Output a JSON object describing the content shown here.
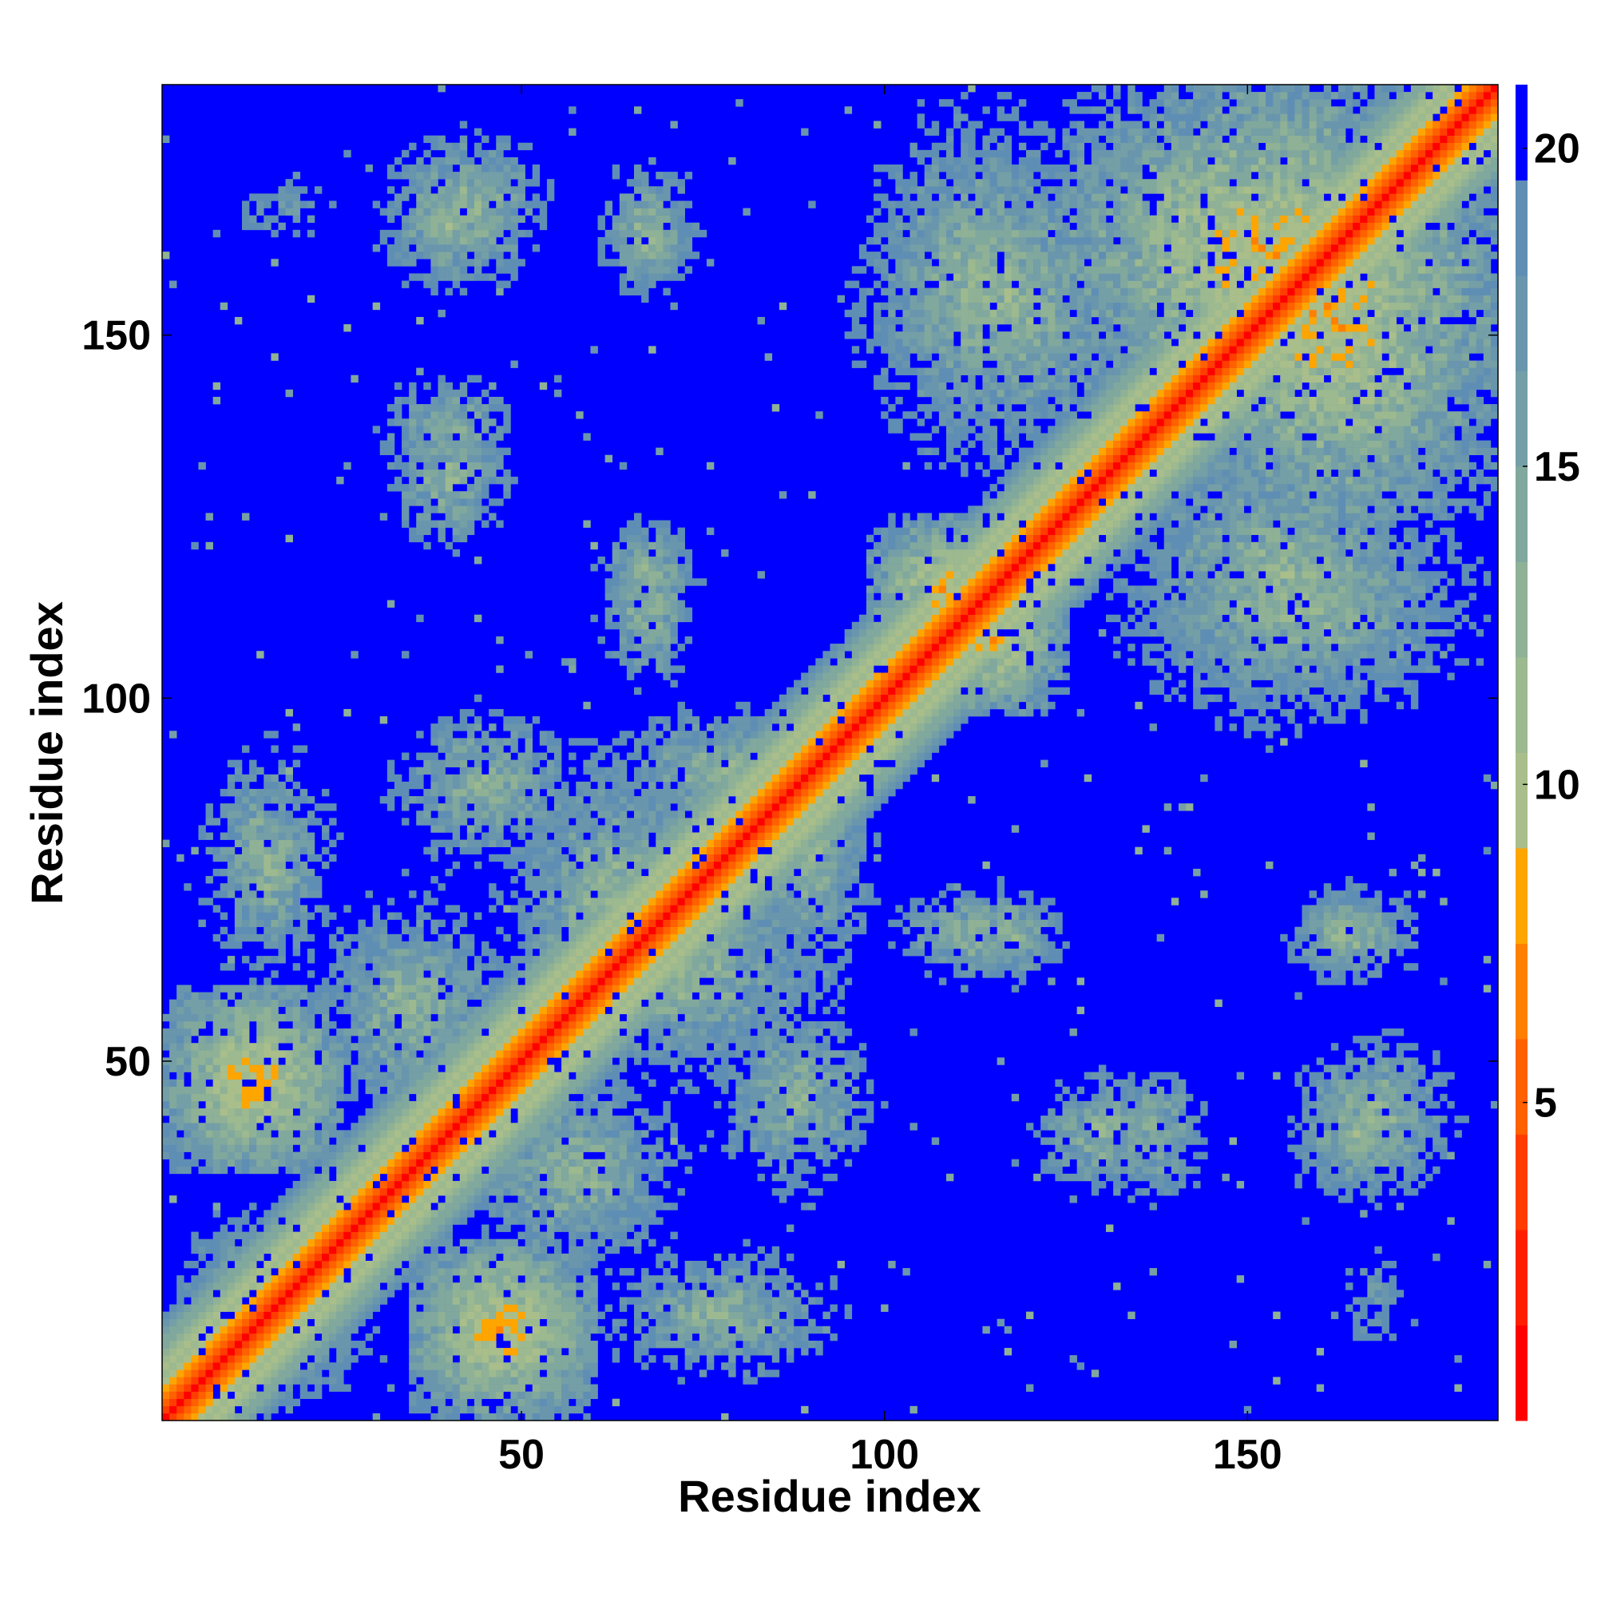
{
  "chart_data": {
    "type": "heatmap",
    "title": "",
    "xlabel": "Residue index",
    "ylabel": "Residue index",
    "n_residues": 184,
    "xlim": [
      1,
      184
    ],
    "ylim": [
      1,
      184
    ],
    "x_ticks": [
      50,
      100,
      150
    ],
    "y_ticks": [
      50,
      100,
      150
    ],
    "colorbar": {
      "ticks": [
        5,
        10,
        15,
        20
      ],
      "range": [
        0,
        21
      ],
      "levels": [
        {
          "max": 1.5,
          "color": "#ff0000"
        },
        {
          "max": 3,
          "color": "#ff1f00"
        },
        {
          "max": 4.5,
          "color": "#ff3d00"
        },
        {
          "max": 6,
          "color": "#ff6000"
        },
        {
          "max": 7.5,
          "color": "#ff8000"
        },
        {
          "max": 9,
          "color": "#ffa500"
        },
        {
          "max": 10.5,
          "color": "#a9be8a"
        },
        {
          "max": 12,
          "color": "#9cb98f"
        },
        {
          "max": 13.5,
          "color": "#8fb196"
        },
        {
          "max": 15,
          "color": "#81a89d"
        },
        {
          "max": 16.5,
          "color": "#749fa6"
        },
        {
          "max": 18,
          "color": "#6996ad"
        },
        {
          "max": 19.5,
          "color": "#5f8eb4"
        },
        {
          "max": 21,
          "color": "#0000ff"
        }
      ]
    },
    "background_color": "#0000ff",
    "diagonal_band_width": 6,
    "contact_regions": [
      {
        "x": [
          1,
          30
        ],
        "y": [
          1,
          30
        ],
        "level": "medium"
      },
      {
        "x": [
          35,
          60
        ],
        "y": [
          1,
          25
        ],
        "level": "high"
      },
      {
        "x": [
          60,
          95
        ],
        "y": [
          5,
          25
        ],
        "level": "medium"
      },
      {
        "x": [
          1,
          25
        ],
        "y": [
          35,
          60
        ],
        "level": "high"
      },
      {
        "x": [
          20,
          50
        ],
        "y": [
          40,
          75
        ],
        "level": "medium"
      },
      {
        "x": [
          50,
          95
        ],
        "y": [
          45,
          80
        ],
        "level": "medium"
      },
      {
        "x": [
          30,
          60
        ],
        "y": [
          75,
          100
        ],
        "level": "medium"
      },
      {
        "x": [
          60,
          95
        ],
        "y": [
          80,
          100
        ],
        "level": "medium"
      },
      {
        "x": [
          105,
          125
        ],
        "y": [
          98,
          118
        ],
        "level": "high"
      },
      {
        "x": [
          100,
          125
        ],
        "y": [
          60,
          75
        ],
        "level": "medium"
      },
      {
        "x": [
          120,
          140
        ],
        "y": [
          30,
          50
        ],
        "level": "medium"
      },
      {
        "x": [
          155,
          175
        ],
        "y": [
          30,
          50
        ],
        "level": "medium"
      },
      {
        "x": [
          155,
          170
        ],
        "y": [
          60,
          75
        ],
        "level": "medium"
      },
      {
        "x": [
          130,
          184
        ],
        "y": [
          95,
          130
        ],
        "level": "medium"
      },
      {
        "x": [
          140,
          184
        ],
        "y": [
          125,
          180
        ],
        "level": "high"
      },
      {
        "x": [
          95,
          140
        ],
        "y": [
          130,
          180
        ],
        "level": "medium"
      },
      {
        "x": [
          30,
          55
        ],
        "y": [
          155,
          180
        ],
        "level": "medium"
      },
      {
        "x": [
          60,
          75
        ],
        "y": [
          155,
          175
        ],
        "level": "medium"
      },
      {
        "x": [
          30,
          50
        ],
        "y": [
          130,
          145
        ],
        "level": "medium"
      },
      {
        "x": [
          60,
          75
        ],
        "y": [
          110,
          125
        ],
        "level": "medium"
      },
      {
        "x": [
          5,
          30
        ],
        "y": [
          160,
          175
        ],
        "level": "low"
      }
    ]
  }
}
